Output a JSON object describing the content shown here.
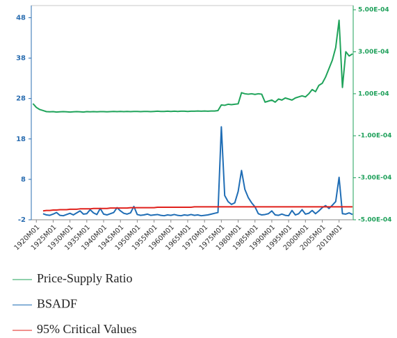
{
  "chart_data": {
    "type": "line",
    "x": [
      1919,
      1920,
      1921,
      1922,
      1923,
      1924,
      1925,
      1926,
      1927,
      1928,
      1929,
      1930,
      1931,
      1932,
      1933,
      1934,
      1935,
      1936,
      1937,
      1938,
      1939,
      1940,
      1941,
      1942,
      1943,
      1944,
      1945,
      1946,
      1947,
      1948,
      1949,
      1950,
      1951,
      1952,
      1953,
      1954,
      1955,
      1956,
      1957,
      1958,
      1959,
      1960,
      1961,
      1962,
      1963,
      1964,
      1965,
      1966,
      1967,
      1968,
      1969,
      1970,
      1971,
      1972,
      1973,
      1974,
      1975,
      1976,
      1977,
      1978,
      1979,
      1980,
      1981,
      1982,
      1983,
      1984,
      1985,
      1986,
      1987,
      1988,
      1989,
      1990,
      1991,
      1992,
      1993,
      1994,
      1995,
      1996,
      1997,
      1998,
      1999,
      2000,
      2001,
      2002,
      2003,
      2004,
      2005,
      2006,
      2007,
      2008,
      2009,
      2010,
      2011,
      2012,
      2013,
      2014
    ],
    "xlim": [
      1918.5,
      2014.2
    ],
    "xticks": [
      {
        "value": 1920,
        "label": "1920M01"
      },
      {
        "value": 1925,
        "label": "1925M01"
      },
      {
        "value": 1930,
        "label": "1930M01"
      },
      {
        "value": 1935,
        "label": "1935M01"
      },
      {
        "value": 1940,
        "label": "1940M01"
      },
      {
        "value": 1945,
        "label": "1945M01"
      },
      {
        "value": 1950,
        "label": "1950M01"
      },
      {
        "value": 1955,
        "label": "1955M01"
      },
      {
        "value": 1960,
        "label": "1960M01"
      },
      {
        "value": 1965,
        "label": "1965M01"
      },
      {
        "value": 1970,
        "label": "1970M01"
      },
      {
        "value": 1975,
        "label": "1975M01"
      },
      {
        "value": 1980,
        "label": "1980M01"
      },
      {
        "value": 1985,
        "label": "1985M01"
      },
      {
        "value": 1990,
        "label": "1990M01"
      },
      {
        "value": 1995,
        "label": "1995M01"
      },
      {
        "value": 2000,
        "label": "2000M01"
      },
      {
        "value": 2005,
        "label": "2005M01"
      },
      {
        "value": 2010,
        "label": "2010M01"
      }
    ],
    "ylim": [
      -2,
      51
    ],
    "yticks": [
      -2,
      8,
      18,
      28,
      38,
      48
    ],
    "y2lim": [
      -0.0005,
      0.00052
    ],
    "y2ticks": [
      {
        "value": 0.0005,
        "label": "5.00E-04"
      },
      {
        "value": 0.0003,
        "label": "3.00E-04"
      },
      {
        "value": 0.0001,
        "label": "1.00E-04"
      },
      {
        "value": -0.0001,
        "label": "-1.00E-04"
      },
      {
        "value": -0.0003,
        "label": "-3.00E-04"
      },
      {
        "value": -0.0005,
        "label": "-5.00E-04"
      }
    ],
    "series": [
      {
        "name": "Price-Supply Ratio",
        "color": "#1fa35a",
        "axis": "y2",
        "values": [
          5.3e-05,
          3.5e-05,
          2.5e-05,
          2e-05,
          1.5e-05,
          1.4e-05,
          1.5e-05,
          1.3e-05,
          1.4e-05,
          1.5e-05,
          1.4e-05,
          1.3e-05,
          1.4e-05,
          1.5e-05,
          1.4e-05,
          1.3e-05,
          1.5e-05,
          1.4e-05,
          1.5e-05,
          1.4e-05,
          1.5e-05,
          1.5e-05,
          1.4e-05,
          1.5e-05,
          1.6e-05,
          1.5e-05,
          1.6e-05,
          1.5e-05,
          1.6e-05,
          1.5e-05,
          1.6e-05,
          1.6e-05,
          1.5e-05,
          1.6e-05,
          1.6e-05,
          1.5e-05,
          1.6e-05,
          1.7e-05,
          1.6e-05,
          1.6e-05,
          1.7e-05,
          1.6e-05,
          1.7e-05,
          1.6e-05,
          1.7e-05,
          1.7e-05,
          1.6e-05,
          1.7e-05,
          1.7e-05,
          1.8e-05,
          1.7e-05,
          1.8e-05,
          1.7e-05,
          1.8e-05,
          1.8e-05,
          2e-05,
          4.7e-05,
          4.5e-05,
          5e-05,
          4.8e-05,
          5e-05,
          5.2e-05,
          0.000105,
          0.0001,
          9.8e-05,
          0.0001,
          9.7e-05,
          0.0001,
          9.8e-05,
          6e-05,
          6.5e-05,
          7e-05,
          6e-05,
          7.5e-05,
          7e-05,
          8e-05,
          7.5e-05,
          7e-05,
          8e-05,
          8.5e-05,
          9e-05,
          8.5e-05,
          0.0001,
          0.00012,
          0.00011,
          0.00014,
          0.00015,
          0.00018,
          0.00022,
          0.00026,
          0.00032,
          0.00045,
          0.00013,
          0.0003,
          0.00028,
          0.00029
        ]
      },
      {
        "name": "BSADF",
        "color": "#1f6db5",
        "values": [
          null,
          null,
          null,
          -0.5,
          -0.8,
          -0.9,
          -0.6,
          -0.2,
          -0.9,
          -1.0,
          -0.7,
          -0.4,
          -0.8,
          -0.3,
          0.2,
          -0.6,
          -0.5,
          0.5,
          -0.3,
          -0.7,
          0.8,
          -0.6,
          -0.8,
          -0.5,
          -0.2,
          1.0,
          0.2,
          -0.4,
          -0.6,
          -0.3,
          1.3,
          -0.7,
          -0.9,
          -0.8,
          -0.6,
          -0.9,
          -0.8,
          -0.7,
          -0.9,
          -1.0,
          -0.8,
          -0.9,
          -0.7,
          -0.9,
          -1.0,
          -0.8,
          -0.9,
          -0.7,
          -0.9,
          -0.8,
          -1.0,
          -0.9,
          -0.8,
          -0.6,
          -0.4,
          -0.2,
          21.0,
          4.0,
          2.5,
          1.8,
          2.2,
          5.0,
          10.2,
          5.5,
          3.5,
          2.2,
          1.2,
          -0.5,
          -0.8,
          -0.7,
          -0.5,
          0.2,
          -0.8,
          -0.9,
          -0.6,
          -0.9,
          -1.0,
          0.3,
          -0.8,
          -0.5,
          0.5,
          -0.6,
          -0.4,
          0.3,
          -0.5,
          0.2,
          1.0,
          1.5,
          0.8,
          1.6,
          2.5,
          8.5,
          -0.5,
          -0.6,
          -0.3,
          -0.7
        ]
      },
      {
        "name": "95% Critical Values",
        "color": "#e0201b",
        "values": [
          null,
          null,
          null,
          0.2,
          0.3,
          0.3,
          0.4,
          0.4,
          0.5,
          0.5,
          0.5,
          0.6,
          0.6,
          0.6,
          0.7,
          0.7,
          0.7,
          0.7,
          0.8,
          0.8,
          0.8,
          0.8,
          0.8,
          0.9,
          0.9,
          0.9,
          0.9,
          0.9,
          0.9,
          1.0,
          1.0,
          1.0,
          1.0,
          1.0,
          1.0,
          1.0,
          1.0,
          1.1,
          1.1,
          1.1,
          1.1,
          1.1,
          1.1,
          1.1,
          1.1,
          1.1,
          1.1,
          1.1,
          1.2,
          1.2,
          1.2,
          1.2,
          1.2,
          1.2,
          1.2,
          1.2,
          1.2,
          1.2,
          1.2,
          1.2,
          1.2,
          1.2,
          1.2,
          1.2,
          1.2,
          1.2,
          1.2,
          1.2,
          1.2,
          1.2,
          1.2,
          1.2,
          1.2,
          1.2,
          1.2,
          1.2,
          1.2,
          1.2,
          1.2,
          1.2,
          1.2,
          1.2,
          1.2,
          1.2,
          1.2,
          1.2,
          1.2,
          1.2,
          1.2,
          1.2,
          1.2,
          1.2,
          1.2,
          1.2,
          1.2,
          1.2
        ]
      }
    ]
  }
}
